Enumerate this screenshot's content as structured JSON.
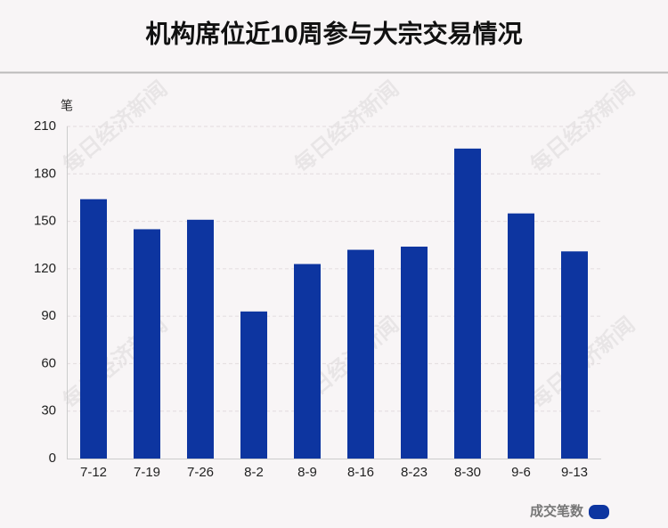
{
  "chart_data": {
    "type": "bar",
    "title": "机构席位近10周参与大宗交易情况",
    "y_label": "笔",
    "categories": [
      "7-12",
      "7-19",
      "7-26",
      "8-2",
      "8-9",
      "8-16",
      "8-23",
      "8-30",
      "9-6",
      "9-13"
    ],
    "series": [
      {
        "name": "成交笔数",
        "color": "#0d35a0",
        "values": [
          164,
          145,
          151,
          93,
          123,
          132,
          134,
          196,
          155,
          131
        ]
      }
    ],
    "ylim": [
      0,
      210
    ],
    "yticks": [
      0,
      30,
      60,
      90,
      120,
      150,
      180,
      210
    ],
    "grid": true,
    "legend": "bottom-right",
    "watermark": "每日经济新闻"
  }
}
